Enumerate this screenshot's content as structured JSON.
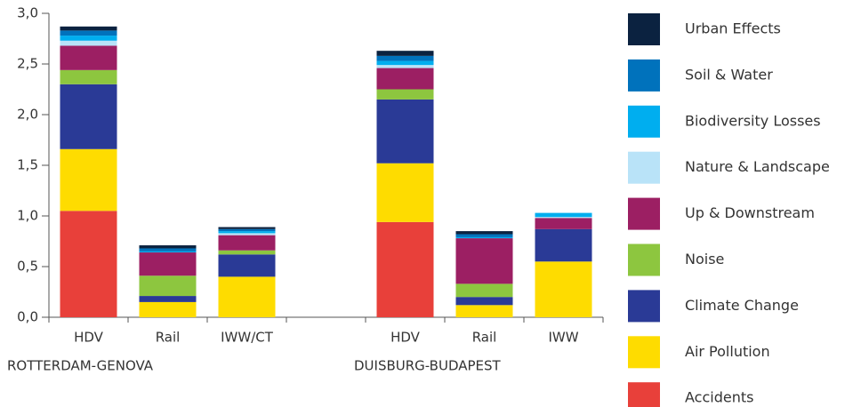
{
  "chart_data": {
    "type": "stacked_bar",
    "categories": [
      "HDV",
      "Rail",
      "IWW/CT",
      null,
      "HDV",
      "Rail",
      "IWW"
    ],
    "group_labels": [
      "ROTTERDAM-GENOVA",
      "DUISBURG-BUDAPEST"
    ],
    "ylim": [
      0,
      3
    ],
    "yticks": [
      {
        "value": 0,
        "label": "0,0"
      },
      {
        "value": 0.5,
        "label": "0,5"
      },
      {
        "value": 1,
        "label": "1,0"
      },
      {
        "value": 1.5,
        "label": "1,5"
      },
      {
        "value": 2,
        "label": "2,0"
      },
      {
        "value": 2.5,
        "label": "2,5"
      },
      {
        "value": 3,
        "label": "3,0"
      }
    ],
    "series": [
      {
        "name": "Accidents",
        "color": "#e8403a",
        "values": [
          1.05,
          0,
          0,
          null,
          0.94,
          0,
          0
        ]
      },
      {
        "name": "Air Pollution",
        "color": "#fedc00",
        "values": [
          0.61,
          0.15,
          0.4,
          null,
          0.58,
          0.12,
          0.55
        ]
      },
      {
        "name": "Climate Change",
        "color": "#2a3a96",
        "values": [
          0.64,
          0.06,
          0.22,
          null,
          0.63,
          0.08,
          0.32
        ]
      },
      {
        "name": "Noise",
        "color": "#8dc63f",
        "values": [
          0.14,
          0.2,
          0.04,
          null,
          0.1,
          0.13,
          0
        ]
      },
      {
        "name": "Up & Downstream",
        "color": "#9c1f63",
        "values": [
          0.24,
          0.23,
          0.15,
          null,
          0.21,
          0.45,
          0.11
        ]
      },
      {
        "name": "Nature & Landscape",
        "color": "#b9e3f8",
        "values": [
          0.05,
          0,
          0.02,
          null,
          0.03,
          0,
          0.01
        ]
      },
      {
        "name": "Biodiversity Losses",
        "color": "#00aeef",
        "values": [
          0.05,
          0.01,
          0.02,
          null,
          0.04,
          0.01,
          0.04
        ]
      },
      {
        "name": "Soil & Water",
        "color": "#0072bc",
        "values": [
          0.05,
          0.03,
          0.02,
          null,
          0.05,
          0.03,
          0
        ]
      },
      {
        "name": "Urban Effects",
        "color": "#0b2240",
        "values": [
          0.04,
          0.03,
          0.02,
          null,
          0.05,
          0.03,
          0
        ]
      }
    ]
  }
}
